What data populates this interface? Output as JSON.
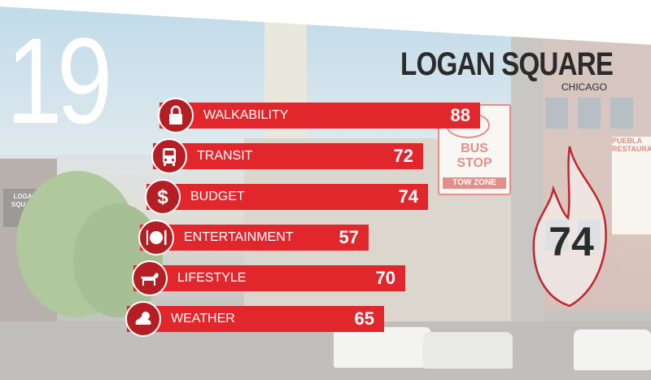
{
  "rank": "19",
  "neighborhood": "LOGAN SQUARE",
  "city": "CHICAGO",
  "overall_score": "74",
  "categories": [
    {
      "label": "WALKABILITY",
      "value": "88",
      "icon": "lock-icon"
    },
    {
      "label": "TRANSIT",
      "value": "72",
      "icon": "bus-icon"
    },
    {
      "label": "BUDGET",
      "value": "74",
      "icon": "dollar-icon"
    },
    {
      "label": "ENTERTAINMENT",
      "value": "57",
      "icon": "dining-icon"
    },
    {
      "label": "LIFESTYLE",
      "value": "70",
      "icon": "dog-icon"
    },
    {
      "label": "WEATHER",
      "value": "65",
      "icon": "weather-icon"
    }
  ],
  "background_signs": {
    "bus_stop_line1": "BUS",
    "bus_stop_line2": "STOP",
    "tow_zone": "TOW ZONE",
    "store_left": "LOGAN SQUARE",
    "store_right": "PUEBLA RESTAURANT"
  },
  "colors": {
    "bar_red": "#e1262c",
    "icon_circle_red": "#b41e24",
    "title_dark": "#2b2b2b",
    "flame_outline": "#c0262c"
  }
}
